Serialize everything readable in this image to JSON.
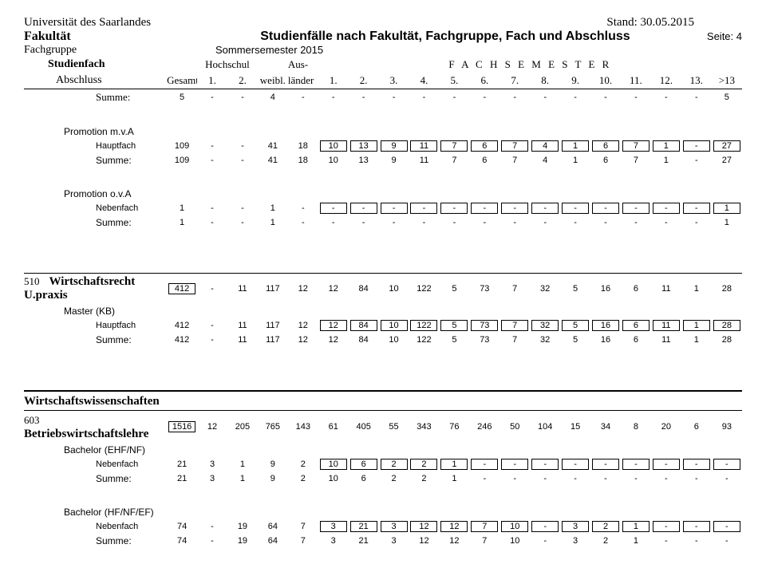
{
  "header": {
    "uni": "Universität des Saarlandes",
    "stand": "Stand: 30.05.2015",
    "fakultaet": "Fakultät",
    "fachgruppe": "Fachgruppe",
    "title": "Studienfälle nach Fakultät, Fachgruppe, Fach und Abschluss",
    "semester": "Sommersemester 2015",
    "seite": "Seite: 4"
  },
  "colhdr": {
    "studienfach": "Studienfach",
    "abschluss": "Abschluss",
    "gesamt": "Gesamt",
    "hochschul": "Hochschul",
    "h1": "1.",
    "h2": "2.",
    "weibl": "weibl.",
    "aus": "Aus-",
    "laender": "länder",
    "fachsemester": "F A C H S E M E S T E R",
    "f1": "1.",
    "f2": "2.",
    "f3": "3.",
    "f4": "4.",
    "f5": "5.",
    "f6": "6.",
    "f7": "7.",
    "f8": "8.",
    "f9": "9.",
    "f10": "10.",
    "f11": "11.",
    "f12": "12.",
    "f13": "13.",
    "fgt13": ">13"
  },
  "rows": {
    "summe_top": {
      "label": "Summe:",
      "v": [
        "5",
        "-",
        "-",
        "4",
        "-",
        "-",
        "-",
        "-",
        "-",
        "-",
        "-",
        "-",
        "-",
        "-",
        "-",
        "-",
        "-",
        "-",
        "5"
      ]
    },
    "prom_mva": {
      "label": "Promotion m.v.A"
    },
    "prom_mva_haupt": {
      "label": "Hauptfach",
      "v": [
        "109",
        "-",
        "-",
        "41",
        "18",
        "10",
        "13",
        "9",
        "11",
        "7",
        "6",
        "7",
        "4",
        "1",
        "6",
        "7",
        "1",
        "-",
        "27"
      ]
    },
    "prom_mva_sum": {
      "label": "Summe:",
      "v": [
        "109",
        "-",
        "-",
        "41",
        "18",
        "10",
        "13",
        "9",
        "11",
        "7",
        "6",
        "7",
        "4",
        "1",
        "6",
        "7",
        "1",
        "-",
        "27"
      ]
    },
    "prom_ova": {
      "label": "Promotion o.v.A"
    },
    "prom_ova_neben": {
      "label": "Nebenfach",
      "v": [
        "1",
        "-",
        "-",
        "1",
        "-",
        "-",
        "-",
        "-",
        "-",
        "-",
        "-",
        "-",
        "-",
        "-",
        "-",
        "-",
        "-",
        "-",
        "1"
      ]
    },
    "prom_ova_sum": {
      "label": "Summe:",
      "v": [
        "1",
        "-",
        "-",
        "1",
        "-",
        "-",
        "-",
        "-",
        "-",
        "-",
        "-",
        "-",
        "-",
        "-",
        "-",
        "-",
        "-",
        "-",
        "1"
      ]
    },
    "wirt_code": "510",
    "wirt_label": "Wirtschaftsrecht U.praxis",
    "wirt_head": {
      "v": [
        "412",
        "-",
        "11",
        "117",
        "12",
        "12",
        "84",
        "10",
        "122",
        "5",
        "73",
        "7",
        "32",
        "5",
        "16",
        "6",
        "11",
        "1",
        "28"
      ]
    },
    "master_kb": {
      "label": "Master (KB)"
    },
    "wirt_haupt": {
      "label": "Hauptfach",
      "v": [
        "412",
        "-",
        "11",
        "117",
        "12",
        "12",
        "84",
        "10",
        "122",
        "5",
        "73",
        "7",
        "32",
        "5",
        "16",
        "6",
        "11",
        "1",
        "28"
      ]
    },
    "wirt_sum": {
      "label": "Summe:",
      "v": [
        "412",
        "-",
        "11",
        "117",
        "12",
        "12",
        "84",
        "10",
        "122",
        "5",
        "73",
        "7",
        "32",
        "5",
        "16",
        "6",
        "11",
        "1",
        "28"
      ]
    },
    "ww_label": "Wirtschaftswissenschaften",
    "bwl_code": "603",
    "bwl_label": "Betriebswirtschaftslehre",
    "bwl_head": {
      "v": [
        "1516",
        "12",
        "205",
        "765",
        "143",
        "61",
        "405",
        "55",
        "343",
        "76",
        "246",
        "50",
        "104",
        "15",
        "34",
        "8",
        "20",
        "6",
        "93"
      ]
    },
    "bach_ehf": {
      "label": "Bachelor (EHF/NF)"
    },
    "bach_ehf_neben": {
      "label": "Nebenfach",
      "v": [
        "21",
        "3",
        "1",
        "9",
        "2",
        "10",
        "6",
        "2",
        "2",
        "1",
        "-",
        "-",
        "-",
        "-",
        "-",
        "-",
        "-",
        "-",
        "-"
      ]
    },
    "bach_ehf_sum": {
      "label": "Summe:",
      "v": [
        "21",
        "3",
        "1",
        "9",
        "2",
        "10",
        "6",
        "2",
        "2",
        "1",
        "-",
        "-",
        "-",
        "-",
        "-",
        "-",
        "-",
        "-",
        "-"
      ]
    },
    "bach_hf": {
      "label": "Bachelor (HF/NF/EF)"
    },
    "bach_hf_neben": {
      "label": "Nebenfach",
      "v": [
        "74",
        "-",
        "19",
        "64",
        "7",
        "3",
        "21",
        "3",
        "12",
        "12",
        "7",
        "10",
        "-",
        "3",
        "2",
        "1",
        "-",
        "-",
        "-"
      ]
    },
    "bach_hf_sum": {
      "label": "Summe:",
      "v": [
        "74",
        "-",
        "19",
        "64",
        "7",
        "3",
        "21",
        "3",
        "12",
        "12",
        "7",
        "10",
        "-",
        "3",
        "2",
        "1",
        "-",
        "-",
        "-"
      ]
    }
  }
}
